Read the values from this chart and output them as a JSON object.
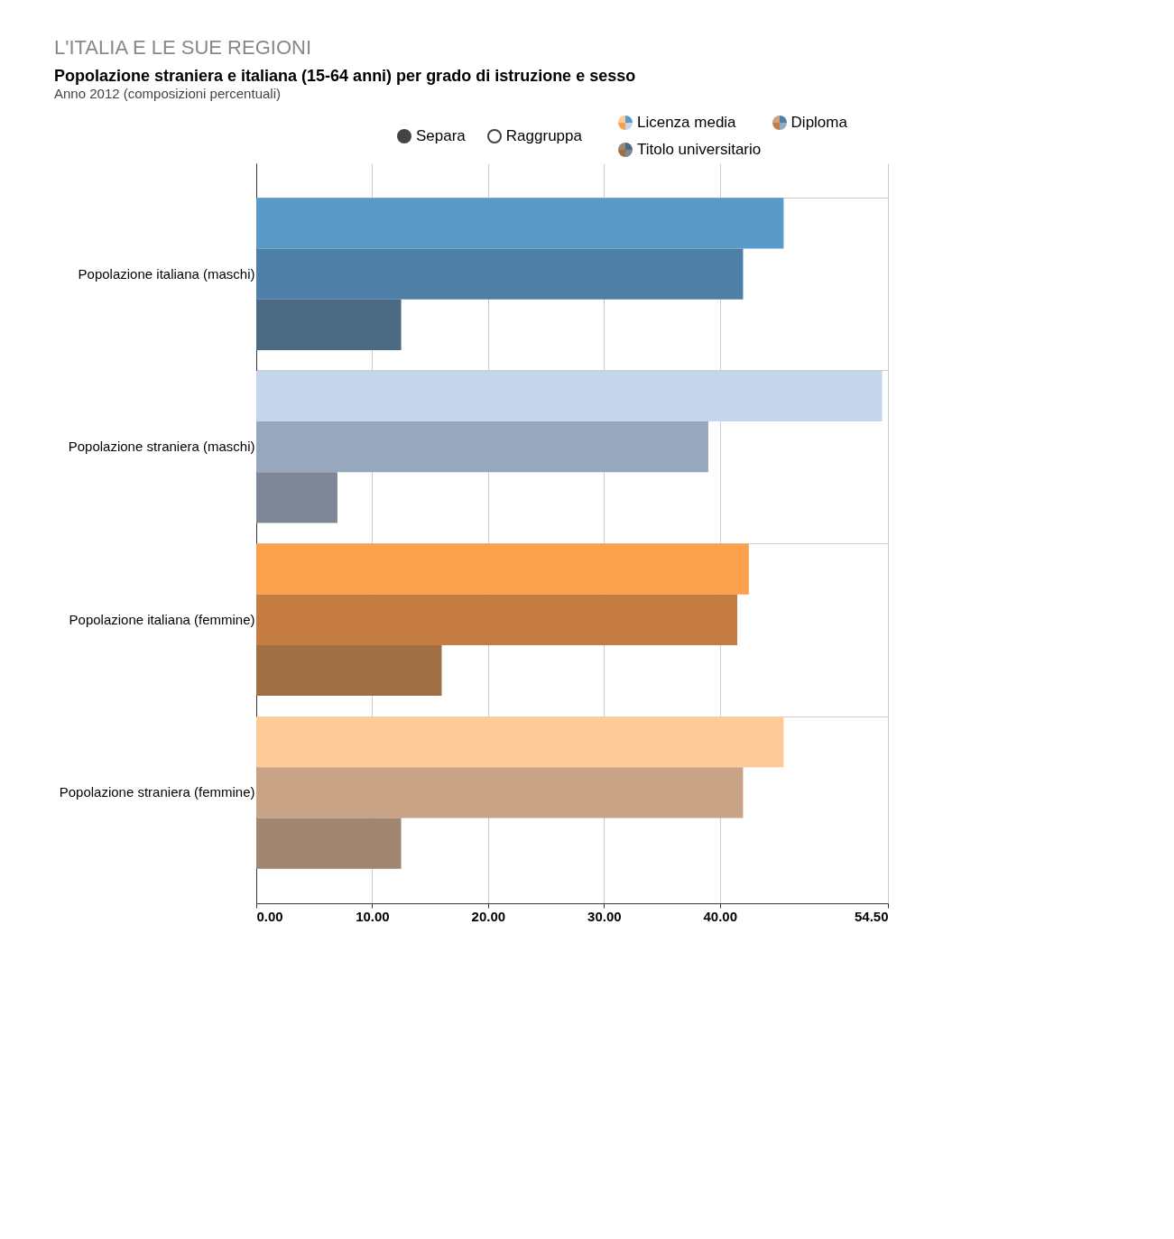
{
  "chart_data": {
    "type": "bar",
    "orientation": "horizontal",
    "title": "Popolazione straniera e italiana (15-64 anni) per grado di istruzione e sesso",
    "subtitle": "Anno 2012 (composizioni percentuali)",
    "annotations": [
      "L'ITALIA E LE SUE REGIONI",
      "Separa",
      "Raggruppa"
    ],
    "categories": [
      "Popolazione italiana (maschi)",
      "Popolazione straniera (maschi)",
      "Popolazione italiana (femmine)",
      "Popolazione straniera (femmine)"
    ],
    "series": [
      {
        "name": "Licenza media",
        "colors": [
          "#5a9ac8",
          "#c4d5ec",
          "#fba04c",
          "#fdca99"
        ],
        "values": [
          45.5,
          54,
          42.5,
          45.5
        ]
      },
      {
        "name": "Diploma",
        "colors": [
          "#4e7fa6",
          "#97a7bd",
          "#c57c43",
          "#c8a386"
        ],
        "values": [
          42,
          39,
          41.5,
          42
        ]
      },
      {
        "name": "Titolo universitario",
        "colors": [
          "#4c6a84",
          "#7e8797",
          "#9f6e43",
          "#a0866e"
        ],
        "values": [
          12.5,
          7,
          16,
          12.5
        ]
      }
    ],
    "xlim": [
      0,
      54.5
    ],
    "xticks": [
      {
        "value": 0,
        "label": "0.00"
      },
      {
        "value": 10,
        "label": "10.00"
      },
      {
        "value": 20,
        "label": "20.00"
      },
      {
        "value": 30,
        "label": "30.00"
      },
      {
        "value": 40,
        "label": "40.00"
      },
      {
        "value": 54.5,
        "label": "54.50"
      }
    ],
    "grid": true,
    "legend": "top"
  }
}
